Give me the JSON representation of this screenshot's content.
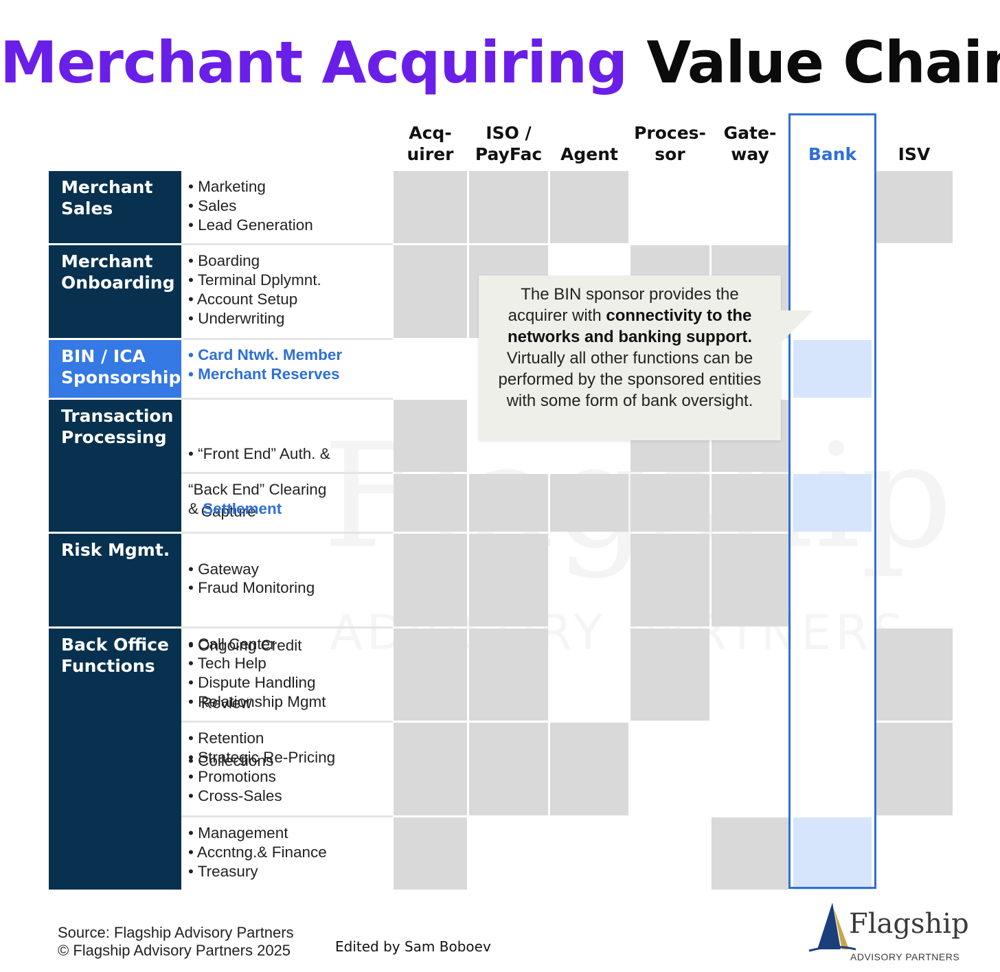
{
  "title": {
    "part1": "Merchant Acquiring",
    "part2": "Value Chain"
  },
  "columns": [
    {
      "key": "acquirer",
      "label": "Acq-\nuirer"
    },
    {
      "key": "iso_payfac",
      "label": "ISO /\nPayFac"
    },
    {
      "key": "agent",
      "label": "Agent"
    },
    {
      "key": "processor",
      "label": "Proces-\nsor"
    },
    {
      "key": "gateway",
      "label": "Gate-\nway"
    },
    {
      "key": "bank",
      "label": "Bank"
    },
    {
      "key": "isv",
      "label": "ISV"
    }
  ],
  "categories": [
    {
      "key": "merchant_sales",
      "lines": [
        "Merchant",
        "Sales"
      ]
    },
    {
      "key": "merchant_onboarding",
      "lines": [
        "Merchant",
        "Onboarding"
      ]
    },
    {
      "key": "bin_ica",
      "lines": [
        "BIN / ICA",
        "Sponsorship"
      ]
    },
    {
      "key": "transaction_processing",
      "lines": [
        "Transaction",
        "Processing"
      ]
    },
    {
      "key": "risk_mgmt",
      "lines": [
        "Risk Mgmt."
      ]
    },
    {
      "key": "back_office",
      "lines": [
        "Back Office",
        "Functions"
      ]
    }
  ],
  "functions": {
    "merchant_sales": [
      "• Marketing",
      "• Sales",
      "• Lead Generation"
    ],
    "merchant_onboarding": [
      "• Boarding",
      "• Terminal Dplymnt.",
      "• Account Setup",
      "• Underwriting"
    ],
    "bin_ica": [
      "• Card Ntwk. Member",
      "• Merchant Reserves"
    ],
    "front_end": [
      "• “Front End” Auth. &",
      "   Capture",
      "• Gateway"
    ],
    "back_end": {
      "line1": "“Back End” Clearing",
      "prefix": "& ",
      "highlight": "Settlement"
    },
    "risk_mgmt": [
      "• Fraud Monitoring",
      "• Ongoing Credit",
      "   Review",
      "• Collections"
    ],
    "back_office_1": [
      "• Call Center",
      "• Tech Help",
      "• Dispute Handling",
      "• Relationship Mgmt"
    ],
    "back_office_2": [
      "• Retention",
      "• Strategic Re-Pricing",
      "• Promotions",
      "• Cross-Sales"
    ],
    "back_office_3": [
      "• Management",
      "• Accntng.& Finance",
      "• Treasury"
    ]
  },
  "matrix": {
    "rows": [
      "merchant_sales",
      "merchant_onboarding",
      "bin_ica",
      "front_end",
      "back_end",
      "risk_mgmt",
      "back_office_1",
      "back_office_2",
      "back_office_3"
    ],
    "cells": [
      [
        "gray",
        "gray",
        "gray",
        "",
        "",
        "",
        "gray"
      ],
      [
        "gray",
        "gray",
        "",
        "gray",
        "gray",
        "",
        ""
      ],
      [
        "",
        "",
        "",
        "",
        "",
        "blue",
        ""
      ],
      [
        "gray",
        "",
        "",
        "gray",
        "gray",
        "",
        ""
      ],
      [
        "gray",
        "gray",
        "gray",
        "gray",
        "gray",
        "blue",
        ""
      ],
      [
        "gray",
        "gray",
        "",
        "gray",
        "gray",
        "",
        ""
      ],
      [
        "gray",
        "gray",
        "",
        "gray",
        "",
        "",
        "gray"
      ],
      [
        "gray",
        "gray",
        "gray",
        "",
        "",
        "",
        "gray"
      ],
      [
        "gray",
        "",
        "",
        "",
        "gray",
        "blue",
        ""
      ]
    ]
  },
  "callout": {
    "t1": "The BIN sponsor provides the acquirer with ",
    "b1": "connectivity to the networks and banking support.",
    "t2": " Virtually all other functions can be performed by the sponsored entities with some form of bank oversight."
  },
  "watermark": {
    "main": "Flagship",
    "sub": "ADVISORY PARTNERS"
  },
  "footer": {
    "source": "Source: Flagship Advisory Partners",
    "copyright": "© Flagship Advisory Partners 2025",
    "edited": "Edited by Sam Boboev"
  },
  "logo": {
    "word": "Flagship",
    "sub": "ADVISORY PARTNERS"
  }
}
